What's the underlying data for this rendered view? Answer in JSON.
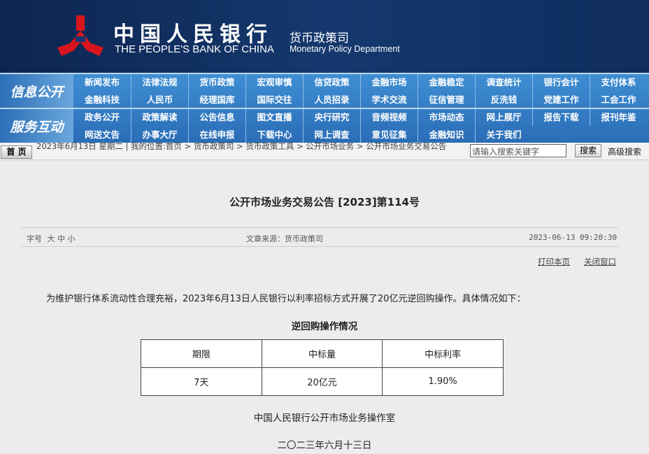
{
  "header": {
    "bank_cn": "中国人民银行",
    "bank_en": "THE PEOPLE'S BANK OF CHINA",
    "dept_cn": "货币政策司",
    "dept_en": "Monetary Policy Department",
    "logo_color": "#d8151c"
  },
  "nav": {
    "blocks": [
      {
        "label": "信息公开",
        "rows": [
          [
            "新闻发布",
            "法律法规",
            "货币政策",
            "宏观审慎",
            "信贷政策",
            "金融市场",
            "金融稳定",
            "调查统计",
            "银行会计",
            "支付体系"
          ],
          [
            "金融科技",
            "人民币",
            "经理国库",
            "国际交往",
            "人员招录",
            "学术交流",
            "征信管理",
            "反洗钱",
            "党建工作",
            "工会工作"
          ]
        ]
      },
      {
        "label": "服务互动",
        "rows": [
          [
            "政务公开",
            "政策解读",
            "公告信息",
            "图文直播",
            "央行研究",
            "音频视频",
            "市场动态",
            "网上展厅",
            "报告下载",
            "报刊年鉴"
          ],
          [
            "网送文告",
            "办事大厅",
            "在线申报",
            "下载中心",
            "网上调查",
            "意见征集",
            "金融知识",
            "关于我们"
          ]
        ]
      }
    ]
  },
  "breadcrumb": {
    "home": "首 页",
    "text": "2023年6月13日 星期二 | 我的位置:首页 > 货币政策司 > 货币政策工具 > 公开市场业务 > 公开市场业务交易公告",
    "search_placeholder": "请输入搜索关键字",
    "search_button": "搜索",
    "advanced": "高级搜索"
  },
  "article": {
    "title": "公开市场业务交易公告 [2023]第114号",
    "font_label": "字号",
    "font_sizes": [
      "大",
      "中",
      "小"
    ],
    "source": "文章来源：货币政策司",
    "datetime": "2023-06-13 09:20:30",
    "print": "打印本页",
    "close": "关闭窗口",
    "paragraph": "为维护银行体系流动性合理充裕，2023年6月13日人民银行以利率招标方式开展了20亿元逆回购操作。具体情况如下：",
    "table_caption": "逆回购操作情况",
    "table": {
      "headers": [
        "期限",
        "中标量",
        "中标利率"
      ],
      "rows": [
        [
          "7天",
          "20亿元",
          "1.90%"
        ]
      ]
    },
    "signature": "中国人民银行公开市场业务操作室",
    "date": "二〇二三年六月十三日"
  }
}
